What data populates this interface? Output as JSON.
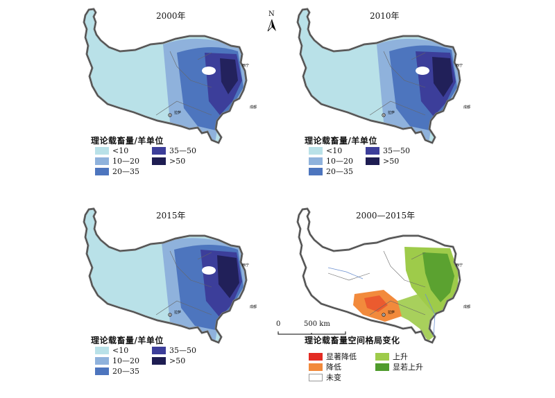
{
  "colors": {
    "c1": "#b9e1e8",
    "c2": "#8fb2dc",
    "c3": "#4d75be",
    "c4": "#3c3e9a",
    "c5": "#1e1d52",
    "sig_dec": "#e32b22",
    "dec": "#f28a3c",
    "unchanged": "#ffffff",
    "inc": "#9ecb4a",
    "sig_inc": "#4f9b2c"
  },
  "panels": [
    {
      "title": "2000年"
    },
    {
      "title": "2010年"
    },
    {
      "title": "2015年"
    },
    {
      "title": "2000—2015年"
    }
  ],
  "cities": {
    "lhasa": "拉萨",
    "chengdu": "成都",
    "xining": "西宁"
  },
  "capacity_legend": {
    "title": "理论载畜量/羊单位",
    "items": [
      {
        "label": "<10",
        "color": "#b9e1e8"
      },
      {
        "label": "10—20",
        "color": "#8fb2dc"
      },
      {
        "label": "20—35",
        "color": "#4d75be"
      },
      {
        "label": "35—50",
        "color": "#3c3e9a"
      },
      {
        "label": ">50",
        "color": "#1e1d52"
      }
    ]
  },
  "change_legend": {
    "title": "理论载畜量空间格局变化",
    "items": [
      {
        "label": "显著降低",
        "color": "#e32b22"
      },
      {
        "label": "降低",
        "color": "#f28a3c"
      },
      {
        "label": "未变",
        "color": "#ffffff"
      },
      {
        "label": "上升",
        "color": "#9ecb4a"
      },
      {
        "label": "显若上升",
        "color": "#4f9b2c"
      }
    ]
  },
  "north_arrow": {
    "label": "N"
  },
  "scale_bar": {
    "start": "0",
    "end": "500 km"
  }
}
